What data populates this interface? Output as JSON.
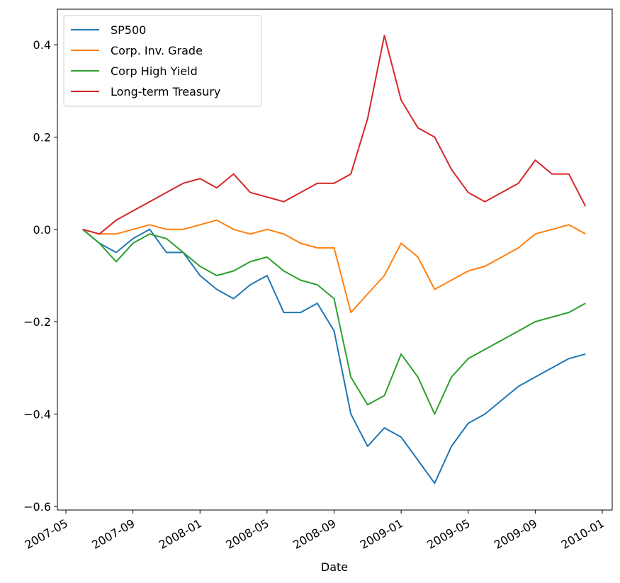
{
  "chart_data": {
    "type": "line",
    "x_label": "Date",
    "x": [
      "2007-06",
      "2007-07",
      "2007-08",
      "2007-09",
      "2007-10",
      "2007-11",
      "2007-12",
      "2008-01",
      "2008-02",
      "2008-03",
      "2008-04",
      "2008-05",
      "2008-06",
      "2008-07",
      "2008-08",
      "2008-09",
      "2008-10",
      "2008-11",
      "2008-12",
      "2009-01",
      "2009-02",
      "2009-03",
      "2009-04",
      "2009-05",
      "2009-06",
      "2009-07",
      "2009-08",
      "2009-09",
      "2009-10",
      "2009-11",
      "2009-12"
    ],
    "series": [
      {
        "name": "SP500",
        "color": "#1f77b4",
        "values": [
          0,
          -0.03,
          -0.05,
          -0.02,
          0.0,
          -0.05,
          -0.05,
          -0.1,
          -0.13,
          -0.15,
          -0.12,
          -0.1,
          -0.18,
          -0.18,
          -0.16,
          -0.22,
          -0.4,
          -0.47,
          -0.43,
          -0.45,
          -0.5,
          -0.55,
          -0.47,
          -0.42,
          -0.4,
          -0.37,
          -0.34,
          -0.32,
          -0.3,
          -0.28,
          -0.27
        ]
      },
      {
        "name": "Corp. Inv. Grade",
        "color": "#ff7f0e",
        "values": [
          0,
          -0.01,
          -0.01,
          0.0,
          0.01,
          0.0,
          0.0,
          0.01,
          0.02,
          0.0,
          -0.01,
          0.0,
          -0.01,
          -0.03,
          -0.04,
          -0.04,
          -0.18,
          -0.14,
          -0.1,
          -0.03,
          -0.06,
          -0.13,
          -0.11,
          -0.09,
          -0.08,
          -0.06,
          -0.04,
          -0.01,
          0.0,
          0.01,
          -0.01
        ]
      },
      {
        "name": "Corp High Yield",
        "color": "#2ca02c",
        "values": [
          0,
          -0.03,
          -0.07,
          -0.03,
          -0.01,
          -0.02,
          -0.05,
          -0.08,
          -0.1,
          -0.09,
          -0.07,
          -0.06,
          -0.09,
          -0.11,
          -0.12,
          -0.15,
          -0.32,
          -0.38,
          -0.36,
          -0.27,
          -0.32,
          -0.4,
          -0.32,
          -0.28,
          -0.26,
          -0.24,
          -0.22,
          -0.2,
          -0.19,
          -0.18,
          -0.16
        ]
      },
      {
        "name": "Long-term Treasury",
        "color": "#d62728",
        "values": [
          0,
          -0.01,
          0.02,
          0.04,
          0.06,
          0.08,
          0.1,
          0.11,
          0.09,
          0.12,
          0.08,
          0.07,
          0.06,
          0.08,
          0.1,
          0.1,
          0.12,
          0.24,
          0.42,
          0.28,
          0.22,
          0.2,
          0.13,
          0.08,
          0.06,
          0.08,
          0.1,
          0.15,
          0.12,
          0.12,
          0.05
        ]
      }
    ],
    "xlim": [
      "2007-05",
      "2010-01"
    ],
    "xticks": [
      "2007-05",
      "2007-09",
      "2008-01",
      "2008-05",
      "2008-09",
      "2009-01",
      "2009-05",
      "2009-09",
      "2010-01"
    ],
    "ylim": [
      -0.608,
      0.477
    ],
    "yticks": [
      {
        "value": -0.6,
        "label": "−0.6"
      },
      {
        "value": -0.4,
        "label": "−0.4"
      },
      {
        "value": -0.2,
        "label": "−0.2"
      },
      {
        "value": 0,
        "label": "0.0"
      },
      0.2,
      0.4
    ],
    "legend": "upper-left"
  }
}
